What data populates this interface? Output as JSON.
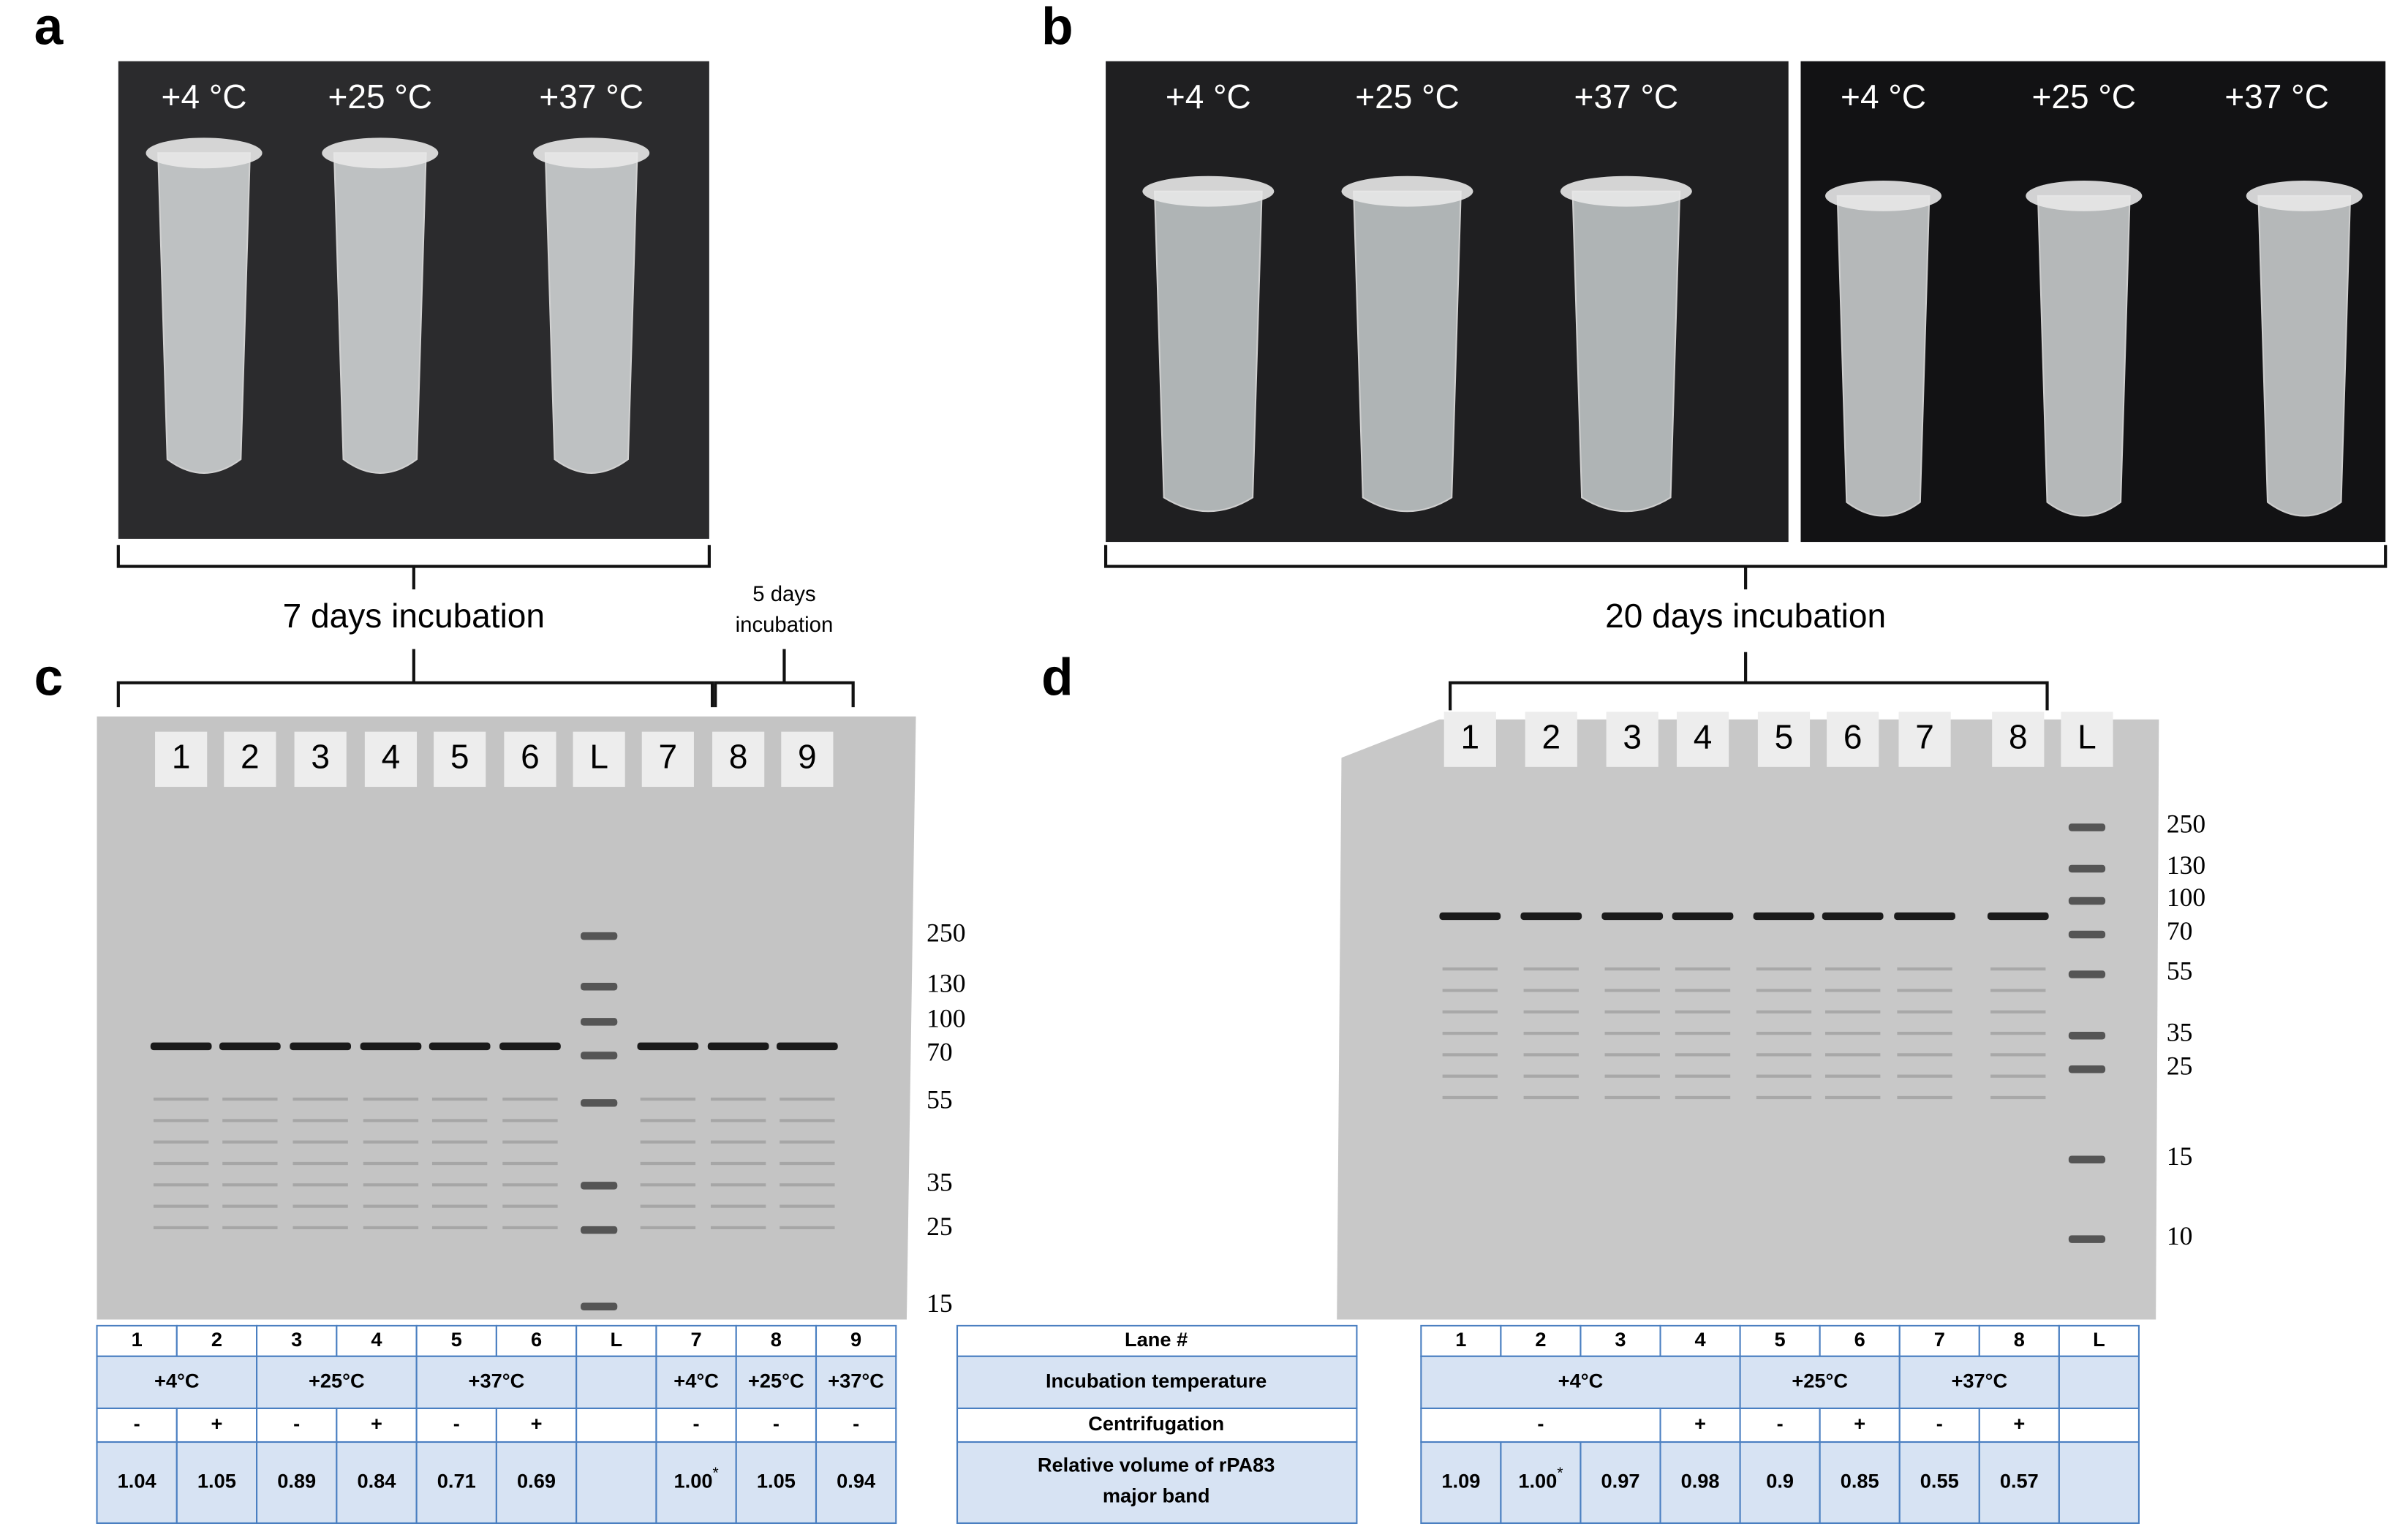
{
  "panel_labels": [
    "a",
    "b",
    "c",
    "d"
  ],
  "photo_a": {
    "temps": [
      "+4 °C",
      "+25 °C",
      "+37 °C"
    ],
    "caption": "7 days incubation"
  },
  "photo_b": {
    "temps_left": [
      "+4 °C",
      "+25 °C",
      "+37 °C"
    ],
    "temps_right": [
      "+4 °C",
      "+25 °C",
      "+37 °C"
    ],
    "caption": "20 days incubation"
  },
  "gel_c": {
    "bracket_label": [
      "5 days",
      "incubation"
    ],
    "lanes": [
      "1",
      "2",
      "3",
      "4",
      "5",
      "6",
      "L",
      "7",
      "8",
      "9"
    ],
    "ladder": [
      "250",
      "130",
      "100",
      "70",
      "55",
      "35",
      "25",
      "15"
    ]
  },
  "gel_d": {
    "lanes": [
      "1",
      "2",
      "3",
      "4",
      "5",
      "6",
      "7",
      "8",
      "L"
    ],
    "ladder": [
      "250",
      "130",
      "100",
      "70",
      "55",
      "35",
      "25",
      "15",
      "10"
    ]
  },
  "table_legend": [
    "Lane #",
    "Incubation temperature",
    "Centrifugation",
    "Relative volume of rPA83 major band"
  ],
  "table_c": {
    "lane": [
      "1",
      "2",
      "3",
      "4",
      "5",
      "6",
      "L",
      "7",
      "8",
      "9"
    ],
    "temperature": [
      {
        "text": "+4°C",
        "span": 2
      },
      {
        "text": "+25°C",
        "span": 2
      },
      {
        "text": "+37°C",
        "span": 2
      },
      {
        "text": null,
        "span": 1
      },
      {
        "text": "+4°C",
        "span": 1
      },
      {
        "text": "+25°C",
        "span": 1
      },
      {
        "text": "+37°C",
        "span": 1
      }
    ],
    "centrifugation": [
      {
        "text": "-",
        "span": 1
      },
      {
        "text": "+",
        "span": 1
      },
      {
        "text": "-",
        "span": 1
      },
      {
        "text": "+",
        "span": 1
      },
      {
        "text": "-",
        "span": 1
      },
      {
        "text": "+",
        "span": 1
      },
      {
        "text": null,
        "span": 1
      },
      {
        "text": "-",
        "span": 1
      },
      {
        "text": "-",
        "span": 1
      },
      {
        "text": "-",
        "span": 1
      }
    ],
    "relative_volume": [
      {
        "text": "1.04"
      },
      {
        "text": "1.05"
      },
      {
        "text": "0.89"
      },
      {
        "text": "0.84"
      },
      {
        "text": "0.71"
      },
      {
        "text": "0.69"
      },
      {
        "text": null
      },
      {
        "text": "1.00",
        "note": "*"
      },
      {
        "text": "1.05"
      },
      {
        "text": "0.94"
      }
    ]
  },
  "table_d": {
    "lane": [
      "1",
      "2",
      "3",
      "4",
      "5",
      "6",
      "7",
      "8",
      "L"
    ],
    "temperature": [
      {
        "text": "+4°C",
        "span": 4
      },
      {
        "text": "+25°C",
        "span": 2
      },
      {
        "text": "+37°C",
        "span": 2
      },
      {
        "text": null,
        "span": 1
      }
    ],
    "centrifugation": [
      {
        "text": "-",
        "span": 3
      },
      {
        "text": "+",
        "span": 1
      },
      {
        "text": "-",
        "span": 1
      },
      {
        "text": "+",
        "span": 1
      },
      {
        "text": "-",
        "span": 1
      },
      {
        "text": "+",
        "span": 1
      },
      {
        "text": null,
        "span": 1
      }
    ],
    "relative_volume": [
      {
        "text": "1.09"
      },
      {
        "text": "1.00",
        "note": "*"
      },
      {
        "text": "0.97"
      },
      {
        "text": "0.98"
      },
      {
        "text": "0.9"
      },
      {
        "text": "0.85"
      },
      {
        "text": "0.55"
      },
      {
        "text": "0.57"
      },
      {
        "text": null
      }
    ]
  }
}
